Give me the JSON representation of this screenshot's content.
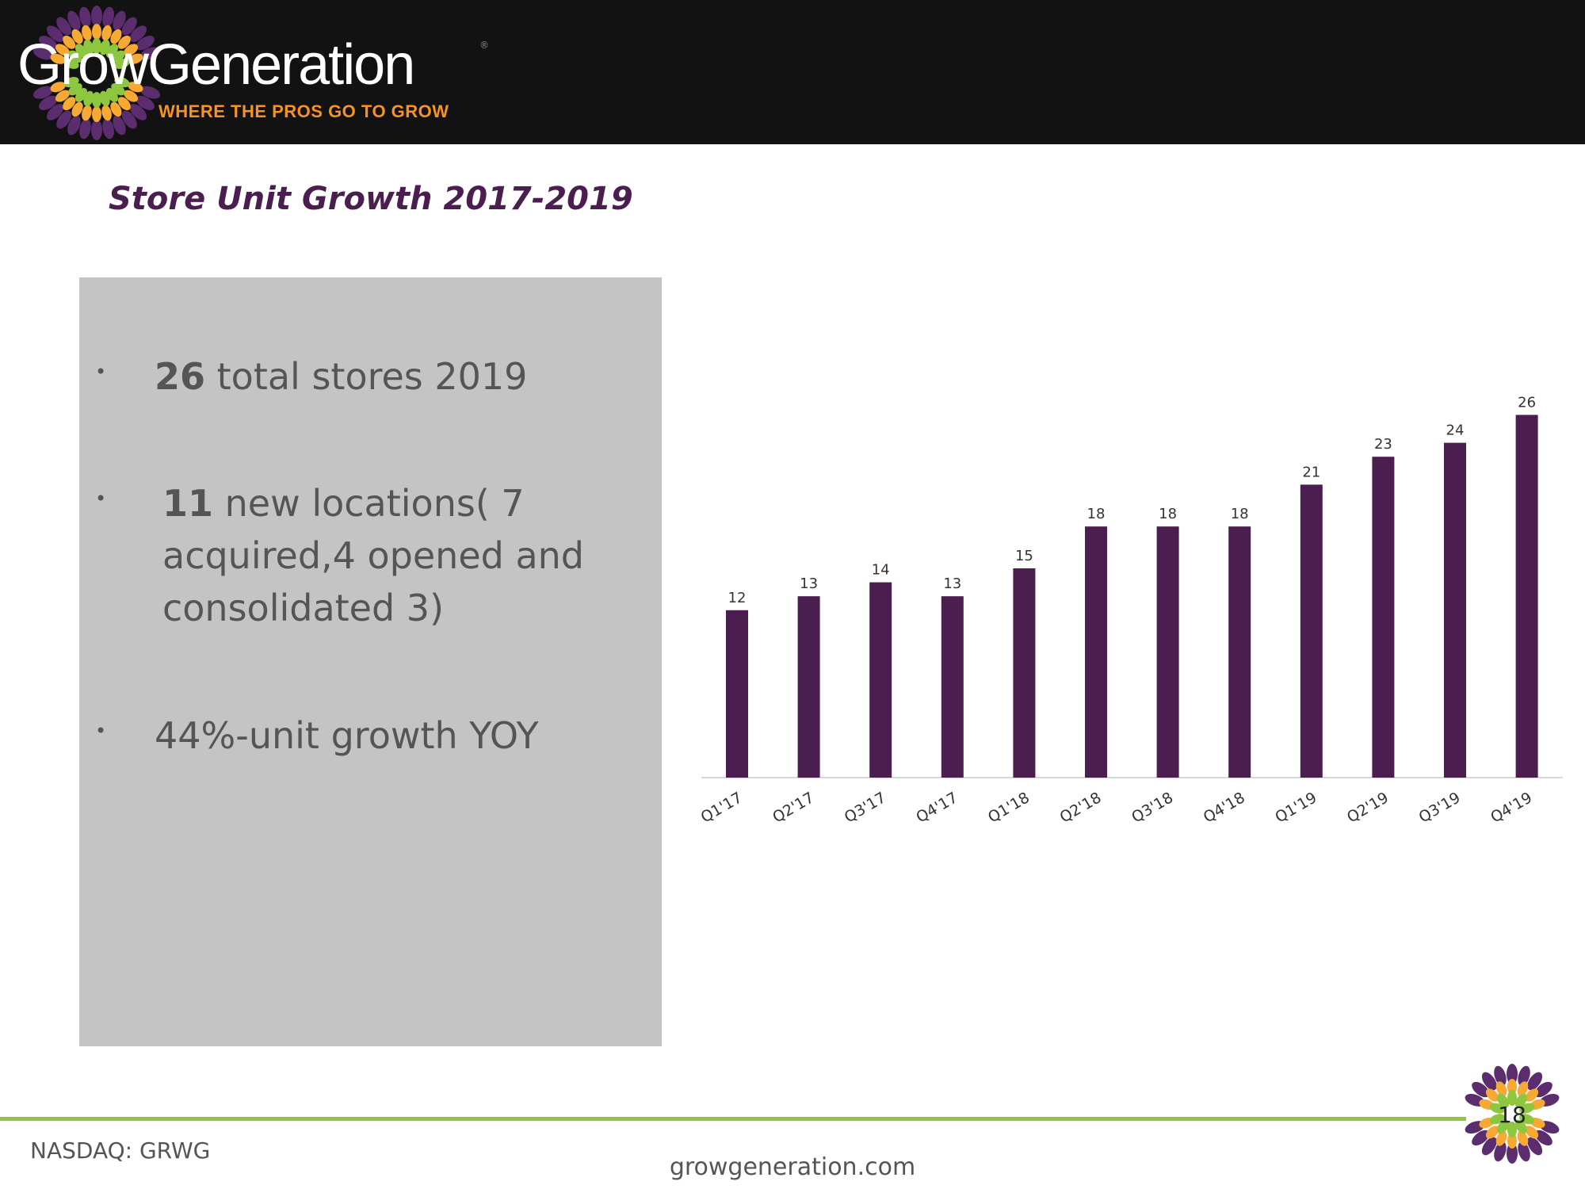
{
  "header": {
    "logo_text": "GrowGeneration",
    "logo_text_part1": "Grow",
    "logo_text_part2": "Generation",
    "tagline": "WHERE THE PROS GO TO GROW",
    "registered_mark": "®"
  },
  "title": "Store Unit Growth 2017-2019",
  "bullets": [
    {
      "bold": "26",
      "text": " total stores 2019"
    },
    {
      "bold": "11",
      "text": " new locations( 7 acquired,4 opened and consolidated 3)"
    },
    {
      "bold": "",
      "text": "44%-unit growth YOY"
    }
  ],
  "bullet_symbol": "•",
  "chart_data": {
    "type": "bar",
    "title": "",
    "xlabel": "",
    "ylabel": "",
    "categories": [
      "Q1'17",
      "Q2'17",
      "Q3'17",
      "Q4'17",
      "Q1'18",
      "Q2'18",
      "Q3'18",
      "Q4'18",
      "Q1'19",
      "Q2'19",
      "Q3'19",
      "Q4'19"
    ],
    "values": [
      12,
      13,
      14,
      13,
      15,
      18,
      18,
      18,
      21,
      23,
      24,
      26
    ],
    "ylim": [
      0,
      26
    ],
    "grid": false,
    "bar_color": "#4a1e4e"
  },
  "footer": {
    "ticker": "NASDAQ: GRWG",
    "website": "growgeneration.com",
    "page_number": "18"
  },
  "colors": {
    "purple": "#4a1e4e",
    "orange": "#f7931e",
    "green": "#8dc63f"
  }
}
